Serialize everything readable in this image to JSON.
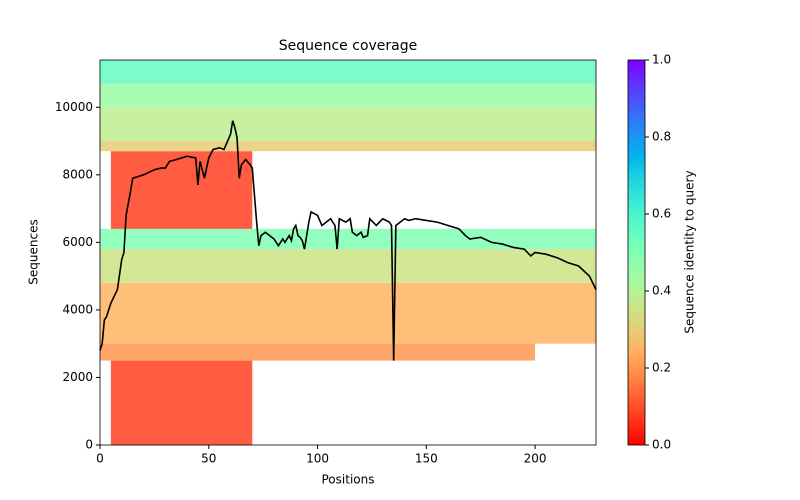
{
  "chart_data": {
    "type": "coverage",
    "title": "Sequence coverage",
    "x_label": "Positions",
    "y_label": "Sequences",
    "xlim": [
      0,
      228
    ],
    "ylim": [
      0,
      11400
    ],
    "xticks": [
      0,
      50,
      100,
      150,
      200
    ],
    "yticks": [
      0,
      2000,
      4000,
      6000,
      8000,
      10000
    ],
    "line_color": "#000000",
    "coverage": {
      "x": [
        0,
        1,
        2,
        3,
        5,
        8,
        10,
        11,
        12,
        14,
        15,
        20,
        25,
        28,
        30,
        32,
        35,
        40,
        44,
        45,
        46,
        48,
        50,
        52,
        55,
        57,
        60,
        61,
        62,
        63,
        64,
        65,
        67,
        69,
        70,
        72,
        73,
        74,
        76,
        78,
        80,
        82,
        84,
        85,
        87,
        88,
        89,
        90,
        91,
        92,
        93,
        94,
        96,
        97,
        100,
        102,
        104,
        106,
        108,
        109,
        110,
        113,
        115,
        116,
        118,
        120,
        121,
        123,
        124,
        127,
        130,
        133,
        134,
        135,
        136,
        138,
        140,
        142,
        145,
        150,
        155,
        160,
        165,
        168,
        170,
        175,
        180,
        185,
        190,
        195,
        198,
        200,
        205,
        210,
        215,
        220,
        225,
        228
      ],
      "values": [
        2800,
        3000,
        3700,
        3800,
        4200,
        4600,
        5500,
        5700,
        6800,
        7500,
        7900,
        8000,
        8150,
        8200,
        8200,
        8400,
        8450,
        8550,
        8500,
        7700,
        8400,
        7900,
        8500,
        8750,
        8800,
        8750,
        9200,
        9600,
        9400,
        9100,
        7900,
        8300,
        8450,
        8300,
        8200,
        6600,
        5900,
        6200,
        6300,
        6200,
        6100,
        5900,
        6100,
        6000,
        6200,
        6050,
        6400,
        6500,
        6200,
        6150,
        6050,
        5800,
        6600,
        6900,
        6800,
        6500,
        6600,
        6700,
        6500,
        5800,
        6700,
        6600,
        6700,
        6300,
        6200,
        6300,
        6150,
        6200,
        6700,
        6500,
        6700,
        6600,
        6500,
        2500,
        6500,
        6600,
        6700,
        6650,
        6700,
        6650,
        6600,
        6500,
        6400,
        6200,
        6100,
        6150,
        6000,
        5950,
        5850,
        5800,
        5600,
        5700,
        5650,
        5550,
        5400,
        5300,
        5000,
        4600
      ]
    },
    "blocks": [
      {
        "x0": 5,
        "x1": 70,
        "y0": 0,
        "y1": 2500,
        "identity": 0.08
      },
      {
        "x0": 0,
        "x1": 200,
        "y0": 2500,
        "y1": 3000,
        "identity": 0.2
      },
      {
        "x0": 0,
        "x1": 228,
        "y0": 3000,
        "y1": 4800,
        "identity": 0.25
      },
      {
        "x0": 0,
        "x1": 228,
        "y0": 4800,
        "y1": 5800,
        "identity": 0.35
      },
      {
        "x0": 0,
        "x1": 228,
        "y0": 5800,
        "y1": 6400,
        "identity": 0.5
      },
      {
        "x0": 5,
        "x1": 70,
        "y0": 6400,
        "y1": 8700,
        "identity": 0.08
      },
      {
        "x0": 0,
        "x1": 228,
        "y0": 8700,
        "y1": 9000,
        "identity": 0.3
      },
      {
        "x0": 0,
        "x1": 228,
        "y0": 9000,
        "y1": 10000,
        "identity": 0.38
      },
      {
        "x0": 0,
        "x1": 228,
        "y0": 10000,
        "y1": 10700,
        "identity": 0.45
      },
      {
        "x0": 0,
        "x1": 228,
        "y0": 10700,
        "y1": 11400,
        "identity": 0.55
      }
    ],
    "colorbar": {
      "label": "Sequence identity to query",
      "lim": [
        0,
        1
      ],
      "ticks": [
        {
          "value": 0,
          "label": "0.0"
        },
        {
          "value": 0.2,
          "label": "0.2"
        },
        {
          "value": 0.4,
          "label": "0.4"
        },
        {
          "value": 0.6,
          "label": "0.6"
        },
        {
          "value": 0.8,
          "label": "0.8"
        },
        {
          "value": 1,
          "label": "1.0"
        }
      ]
    }
  }
}
